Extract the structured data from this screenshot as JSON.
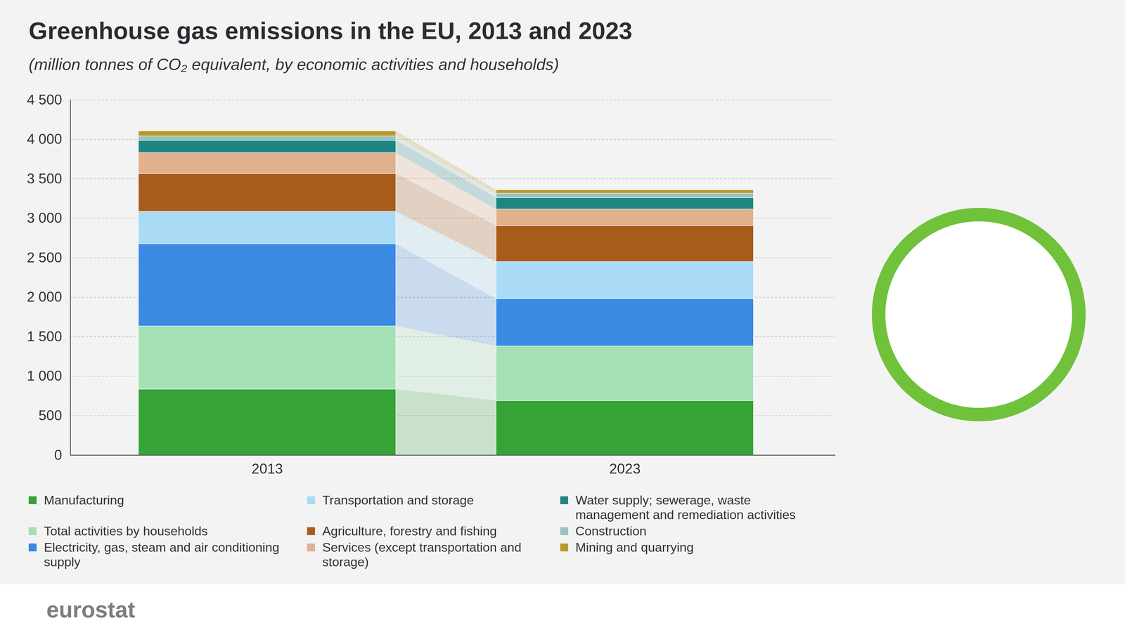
{
  "chart_data": {
    "type": "bar",
    "title": "Greenhouse gas emissions in the EU, 2013 and 2023",
    "subtitle": "(million tonnes of CO₂ equivalent, by economic activities and households)",
    "footer": "eurostat",
    "stacked": true,
    "grid": true,
    "legend": "bottom",
    "categories": [
      "2013",
      "2023"
    ],
    "ylim": [
      0,
      4500
    ],
    "yticks": [
      0,
      500,
      {
        "value": 1000,
        "label": "1 000"
      },
      {
        "value": 1500,
        "label": "1 500"
      },
      {
        "value": 2000,
        "label": "2 000"
      },
      {
        "value": 2500,
        "label": "2 500"
      },
      {
        "value": 3000,
        "label": "3 000"
      },
      {
        "value": 3500,
        "label": "3 500"
      },
      {
        "value": 4000,
        "label": "4 000"
      },
      {
        "value": 4500,
        "label": "4 500"
      }
    ],
    "series": [
      {
        "name": "Manufacturing",
        "color": "#36a336",
        "values": [
          835,
          690
        ]
      },
      {
        "name": "Total activities by households",
        "color": "#a5dfb5",
        "values": [
          800,
          690
        ]
      },
      {
        "name": "Electricity, gas, steam and air conditioning supply",
        "color": "#3a8ae3",
        "values": [
          1040,
          600
        ]
      },
      {
        "name": "Transportation and storage",
        "color": "#a9dbf7",
        "values": [
          410,
          470
        ]
      },
      {
        "name": "Agriculture, forestry and fishing",
        "color": "#a85c1b",
        "values": [
          480,
          455
        ]
      },
      {
        "name": "Services (except transportation and storage)",
        "color": "#e1b08c",
        "values": [
          265,
          210
        ]
      },
      {
        "name": "Water supply; sewerage, waste management and remediation activities",
        "color": "#1f8583",
        "values": [
          155,
          145
        ]
      },
      {
        "name": "Construction",
        "color": "#9ac3c0",
        "values": [
          55,
          55
        ]
      },
      {
        "name": "Mining and quarrying",
        "color": "#b59a2a",
        "values": [
          65,
          45
        ]
      }
    ]
  }
}
